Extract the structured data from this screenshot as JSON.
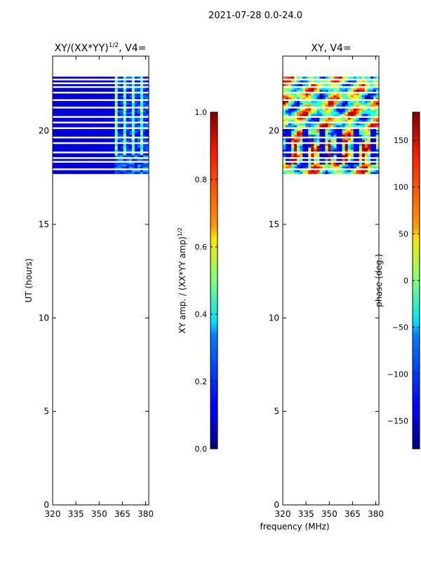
{
  "suptitle": "2021-07-28 0.0-24.0",
  "chart_data": [
    {
      "type": "heatmap",
      "title_main": "XY/(XX*YY)",
      "title_exp": "1/2",
      "title_tail": ", V4=",
      "xlabel": "",
      "ylabel": "UT (hours)",
      "xlim": [
        320,
        382
      ],
      "ylim": [
        0,
        24
      ],
      "xticks": [
        320,
        335,
        350,
        365,
        380
      ],
      "yticks": [
        0,
        5,
        10,
        15,
        20
      ],
      "data_time_range": [
        17.6,
        23.0
      ],
      "colormap": "jet",
      "colorbar": {
        "label_main": "XY amp. / (XX*YY amp)",
        "label_exp": "1/2",
        "range": [
          0.0,
          1.0
        ],
        "ticks": [
          "0.0",
          "0.2",
          "0.4",
          "0.6",
          "0.8",
          "1.0"
        ],
        "tick_values": [
          0.0,
          0.2,
          0.4,
          0.6,
          0.8,
          1.0
        ]
      }
    },
    {
      "type": "heatmap",
      "title_main": "XY, V4=",
      "xlabel": "frequency (MHz)",
      "ylabel": "",
      "xlim": [
        320,
        382
      ],
      "ylim": [
        0,
        24
      ],
      "xticks": [
        320,
        335,
        350,
        365,
        380
      ],
      "yticks": [
        0,
        5,
        10,
        15,
        20
      ],
      "data_time_range": [
        17.6,
        23.0
      ],
      "colormap": "jet",
      "colorbar": {
        "label_main": "phase (deg.)",
        "range": [
          -180,
          180
        ],
        "ticks": [
          "150",
          "100",
          "50",
          "0",
          "−50",
          "−100",
          "−150"
        ],
        "tick_values": [
          150,
          100,
          50,
          0,
          -50,
          -100,
          -150
        ]
      }
    }
  ]
}
